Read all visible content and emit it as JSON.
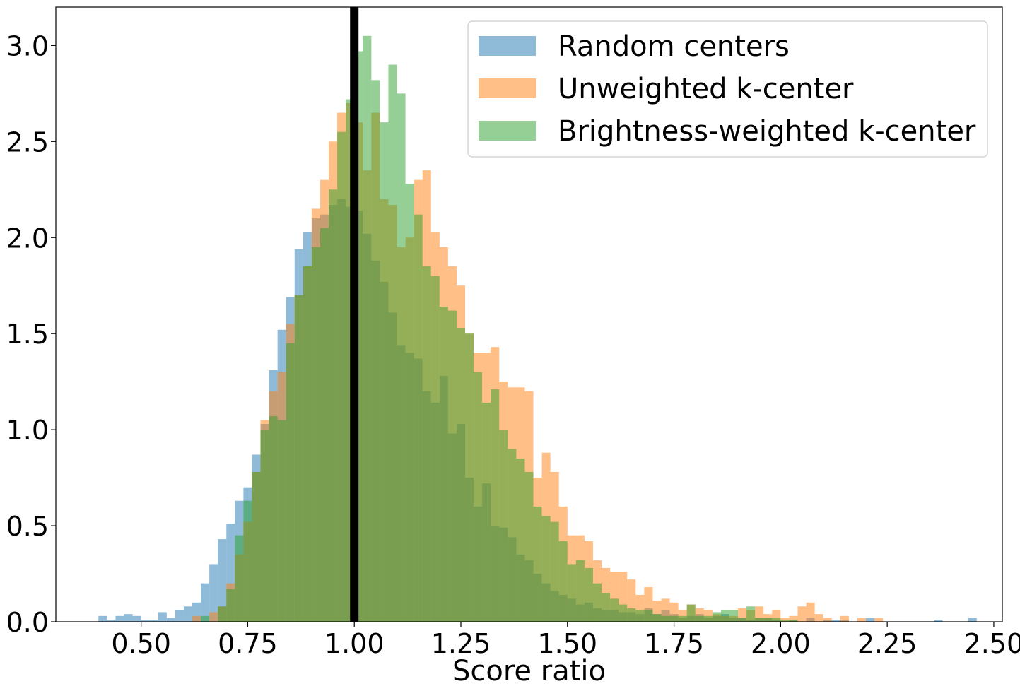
{
  "chart_data": {
    "type": "histogram",
    "xlabel": "Score ratio",
    "ylabel": "",
    "xlim": [
      0.3,
      2.52
    ],
    "ylim": [
      0,
      3.2
    ],
    "xticks": [
      "0.50",
      "0.75",
      "1.00",
      "1.25",
      "1.50",
      "1.75",
      "2.00",
      "2.25",
      "2.50"
    ],
    "yticks": [
      "0.0",
      "0.5",
      "1.0",
      "1.5",
      "2.0",
      "2.5",
      "3.0"
    ],
    "reference_line": {
      "x": 1.0,
      "color": "#000000"
    },
    "legend_position": "top-right",
    "series": [
      {
        "name": "Random centers",
        "color": "#1f77b4",
        "alpha": 0.5,
        "bins": [
          [
            0.4,
            0.03
          ],
          [
            0.42,
            0.01
          ],
          [
            0.44,
            0.03
          ],
          [
            0.46,
            0.04
          ],
          [
            0.48,
            0.03
          ],
          [
            0.5,
            0.01
          ],
          [
            0.52,
            0.01
          ],
          [
            0.54,
            0.05
          ],
          [
            0.56,
            0.02
          ],
          [
            0.58,
            0.06
          ],
          [
            0.6,
            0.08
          ],
          [
            0.62,
            0.1
          ],
          [
            0.64,
            0.2
          ],
          [
            0.66,
            0.3
          ],
          [
            0.68,
            0.43
          ],
          [
            0.7,
            0.51
          ],
          [
            0.72,
            0.63
          ],
          [
            0.74,
            0.7
          ],
          [
            0.76,
            0.87
          ],
          [
            0.78,
            1.03
          ],
          [
            0.8,
            1.31
          ],
          [
            0.82,
            1.52
          ],
          [
            0.84,
            1.69
          ],
          [
            0.86,
            1.94
          ],
          [
            0.88,
            2.03
          ],
          [
            0.9,
            2.1
          ],
          [
            0.92,
            2.12
          ],
          [
            0.94,
            2.17
          ],
          [
            0.96,
            2.2
          ],
          [
            0.98,
            2.16
          ],
          [
            1.0,
            2.14
          ],
          [
            1.02,
            2.02
          ],
          [
            1.04,
            1.88
          ],
          [
            1.06,
            1.77
          ],
          [
            1.08,
            1.61
          ],
          [
            1.1,
            1.44
          ],
          [
            1.12,
            1.4
          ],
          [
            1.14,
            1.37
          ],
          [
            1.16,
            1.2
          ],
          [
            1.18,
            1.14
          ],
          [
            1.2,
            1.28
          ],
          [
            1.22,
            0.98
          ],
          [
            1.24,
            1.03
          ],
          [
            1.26,
            0.75
          ],
          [
            1.28,
            0.6
          ],
          [
            1.3,
            0.72
          ],
          [
            1.32,
            0.5
          ],
          [
            1.34,
            0.49
          ],
          [
            1.36,
            0.44
          ],
          [
            1.38,
            0.35
          ],
          [
            1.4,
            0.32
          ],
          [
            1.42,
            0.25
          ],
          [
            1.44,
            0.2
          ],
          [
            1.46,
            0.16
          ],
          [
            1.48,
            0.14
          ],
          [
            1.5,
            0.12
          ],
          [
            1.52,
            0.09
          ],
          [
            1.54,
            0.1
          ],
          [
            1.56,
            0.07
          ],
          [
            1.58,
            0.06
          ],
          [
            1.6,
            0.06
          ],
          [
            1.62,
            0.05
          ],
          [
            1.64,
            0.05
          ],
          [
            1.66,
            0.04
          ],
          [
            1.68,
            0.07
          ],
          [
            1.7,
            0.04
          ],
          [
            1.72,
            0.06
          ],
          [
            1.74,
            0.04
          ],
          [
            1.76,
            0.02
          ],
          [
            1.78,
            0.03
          ],
          [
            1.8,
            0.04
          ],
          [
            1.82,
            0.02
          ],
          [
            1.84,
            0.03
          ],
          [
            1.86,
            0.04
          ],
          [
            1.88,
            0.02
          ],
          [
            1.9,
            0.02
          ],
          [
            1.92,
            0.01
          ],
          [
            1.94,
            0.02
          ],
          [
            1.96,
            0.02
          ],
          [
            1.98,
            0.01
          ],
          [
            2.02,
            0.01
          ],
          [
            2.06,
            0.02
          ],
          [
            2.1,
            0.01
          ],
          [
            2.12,
            0.01
          ],
          [
            2.14,
            0.01
          ],
          [
            2.2,
            0.02
          ],
          [
            2.36,
            0.01
          ],
          [
            2.44,
            0.02
          ]
        ]
      },
      {
        "name": "Unweighted k-center",
        "color": "#ff7f0e",
        "alpha": 0.5,
        "bins": [
          [
            0.62,
            0.03
          ],
          [
            0.66,
            0.05
          ],
          [
            0.68,
            0.08
          ],
          [
            0.7,
            0.2
          ],
          [
            0.72,
            0.35
          ],
          [
            0.74,
            0.52
          ],
          [
            0.76,
            0.78
          ],
          [
            0.78,
            1.05
          ],
          [
            0.8,
            1.2
          ],
          [
            0.82,
            1.3
          ],
          [
            0.84,
            1.55
          ],
          [
            0.86,
            1.7
          ],
          [
            0.88,
            1.85
          ],
          [
            0.9,
            2.15
          ],
          [
            0.92,
            2.3
          ],
          [
            0.94,
            2.5
          ],
          [
            0.96,
            2.65
          ],
          [
            0.98,
            2.7
          ],
          [
            1.0,
            2.6
          ],
          [
            1.02,
            2.35
          ],
          [
            1.04,
            2.65
          ],
          [
            1.06,
            2.2
          ],
          [
            1.08,
            2.17
          ],
          [
            1.1,
            1.95
          ],
          [
            1.12,
            2.0
          ],
          [
            1.14,
            2.3
          ],
          [
            1.16,
            2.35
          ],
          [
            1.18,
            2.03
          ],
          [
            1.2,
            1.95
          ],
          [
            1.22,
            1.85
          ],
          [
            1.24,
            1.75
          ],
          [
            1.26,
            1.5
          ],
          [
            1.28,
            1.4
          ],
          [
            1.3,
            1.4
          ],
          [
            1.32,
            1.43
          ],
          [
            1.34,
            1.25
          ],
          [
            1.36,
            1.22
          ],
          [
            1.38,
            1.22
          ],
          [
            1.4,
            1.2
          ],
          [
            1.42,
            0.75
          ],
          [
            1.44,
            0.88
          ],
          [
            1.46,
            0.78
          ],
          [
            1.48,
            0.6
          ],
          [
            1.5,
            0.45
          ],
          [
            1.52,
            0.45
          ],
          [
            1.54,
            0.42
          ],
          [
            1.56,
            0.32
          ],
          [
            1.58,
            0.28
          ],
          [
            1.6,
            0.26
          ],
          [
            1.62,
            0.26
          ],
          [
            1.64,
            0.22
          ],
          [
            1.66,
            0.14
          ],
          [
            1.68,
            0.18
          ],
          [
            1.7,
            0.11
          ],
          [
            1.72,
            0.12
          ],
          [
            1.74,
            0.1
          ],
          [
            1.76,
            0.06
          ],
          [
            1.78,
            0.09
          ],
          [
            1.8,
            0.07
          ],
          [
            1.82,
            0.06
          ],
          [
            1.84,
            0.04
          ],
          [
            1.86,
            0.03
          ],
          [
            1.88,
            0.03
          ],
          [
            1.9,
            0.07
          ],
          [
            1.92,
            0.06
          ],
          [
            1.94,
            0.08
          ],
          [
            1.96,
            0.04
          ],
          [
            1.98,
            0.06
          ],
          [
            2.0,
            0.02
          ],
          [
            2.02,
            0.03
          ],
          [
            2.04,
            0.08
          ],
          [
            2.06,
            0.1
          ],
          [
            2.08,
            0.04
          ],
          [
            2.1,
            0.02
          ],
          [
            2.14,
            0.03
          ],
          [
            2.18,
            0.02
          ],
          [
            2.22,
            0.02
          ]
        ]
      },
      {
        "name": "Brightness-weighted k-center",
        "color": "#2ca02c",
        "alpha": 0.5,
        "bins": [
          [
            0.64,
            0.03
          ],
          [
            0.68,
            0.08
          ],
          [
            0.7,
            0.17
          ],
          [
            0.72,
            0.45
          ],
          [
            0.74,
            0.63
          ],
          [
            0.76,
            0.78
          ],
          [
            0.78,
            1.0
          ],
          [
            0.8,
            1.07
          ],
          [
            0.82,
            1.05
          ],
          [
            0.84,
            1.45
          ],
          [
            0.86,
            1.7
          ],
          [
            0.88,
            1.85
          ],
          [
            0.9,
            1.95
          ],
          [
            0.92,
            2.05
          ],
          [
            0.94,
            2.25
          ],
          [
            0.96,
            2.55
          ],
          [
            0.98,
            2.72
          ],
          [
            1.0,
            2.97
          ],
          [
            1.02,
            3.05
          ],
          [
            1.04,
            2.82
          ],
          [
            1.06,
            2.6
          ],
          [
            1.08,
            2.9
          ],
          [
            1.1,
            2.75
          ],
          [
            1.12,
            2.28
          ],
          [
            1.14,
            2.12
          ],
          [
            1.16,
            1.85
          ],
          [
            1.18,
            1.8
          ],
          [
            1.2,
            1.64
          ],
          [
            1.22,
            1.62
          ],
          [
            1.24,
            1.53
          ],
          [
            1.26,
            1.5
          ],
          [
            1.28,
            1.3
          ],
          [
            1.3,
            1.14
          ],
          [
            1.32,
            1.21
          ],
          [
            1.34,
            1.0
          ],
          [
            1.36,
            0.9
          ],
          [
            1.38,
            0.85
          ],
          [
            1.4,
            0.78
          ],
          [
            1.42,
            0.6
          ],
          [
            1.44,
            0.55
          ],
          [
            1.46,
            0.52
          ],
          [
            1.48,
            0.42
          ],
          [
            1.5,
            0.3
          ],
          [
            1.52,
            0.32
          ],
          [
            1.54,
            0.28
          ],
          [
            1.56,
            0.2
          ],
          [
            1.58,
            0.15
          ],
          [
            1.6,
            0.12
          ],
          [
            1.62,
            0.09
          ],
          [
            1.64,
            0.07
          ],
          [
            1.66,
            0.06
          ],
          [
            1.68,
            0.06
          ],
          [
            1.7,
            0.04
          ],
          [
            1.72,
            0.03
          ],
          [
            1.74,
            0.03
          ],
          [
            1.76,
            0.03
          ],
          [
            1.78,
            0.09
          ],
          [
            1.8,
            0.03
          ],
          [
            1.82,
            0.03
          ],
          [
            1.84,
            0.05
          ],
          [
            1.86,
            0.06
          ],
          [
            1.88,
            0.06
          ],
          [
            1.9,
            0.02
          ],
          [
            1.92,
            0.08
          ],
          [
            1.94,
            0.02
          ],
          [
            1.96,
            0.02
          ],
          [
            1.98,
            0.02
          ],
          [
            2.0,
            0.01
          ],
          [
            2.02,
            0.01
          ]
        ]
      }
    ]
  }
}
